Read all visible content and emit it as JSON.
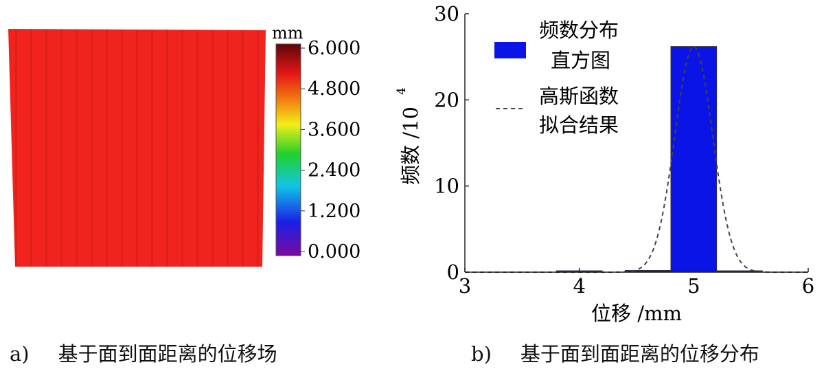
{
  "figure_a": {
    "caption_label": "a)",
    "caption_text": "基于面到面距离的位移场",
    "colorbar_unit": "mm",
    "colorbar_ticks": [
      "6.000",
      "4.800",
      "3.600",
      "2.400",
      "1.200",
      "0.000"
    ],
    "colorbar_range": [
      0,
      6
    ],
    "field_color": "#f0231e",
    "field_value": 5.0
  },
  "figure_b": {
    "caption_label": "b)",
    "caption_text": "基于面到面距离的位移分布"
  },
  "chart_data": {
    "type": "bar",
    "xlabel": "位移 /mm",
    "ylabel": "频数 /10",
    "ylabel_exponent": "4",
    "xlim": [
      3,
      6
    ],
    "ylim": [
      0,
      30
    ],
    "xticks": [
      "3",
      "4",
      "5",
      "6"
    ],
    "yticks": [
      "0",
      "10",
      "20",
      "30"
    ],
    "legend_position": "top-left",
    "series": [
      {
        "name": "频数分布直方图",
        "name_lines": [
          "频数分布",
          "直方图"
        ],
        "color": "#0a14e6",
        "bins": [
          {
            "x0": 3.8,
            "x1": 4.2,
            "value": 0.1
          },
          {
            "x0": 4.4,
            "x1": 4.8,
            "value": 0.2
          },
          {
            "x0": 4.8,
            "x1": 5.2,
            "value": 26.2
          },
          {
            "x0": 5.2,
            "x1": 5.6,
            "value": 0.1
          }
        ]
      },
      {
        "name": "高斯函数拟合结果",
        "name_lines": [
          "高斯函数",
          "拟合结果"
        ],
        "color": "#444444",
        "curve": {
          "kind": "gaussian",
          "amplitude": 26.2,
          "mean": 5.0,
          "sigma": 0.165
        }
      }
    ]
  }
}
